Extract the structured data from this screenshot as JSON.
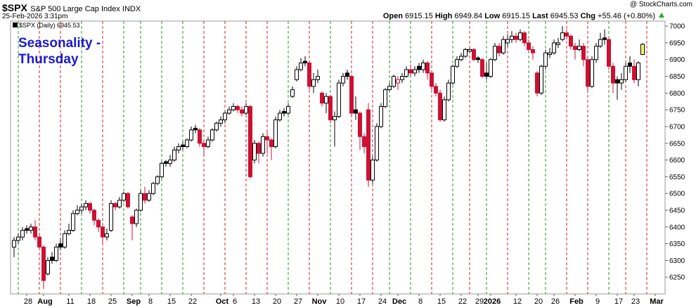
{
  "header": {
    "symbol": "$SPX",
    "name": "S&P 500 Large Cap Index INDX",
    "date": "25-Feb-2026 3:31pm",
    "stat_labels": [
      "Open",
      "High",
      "Low",
      "Last",
      "Chg"
    ],
    "change": "+55.46 (+0.80%)",
    "source": "@ StockCharts.com",
    "legend": "$SPX (Daily)"
  },
  "chart_data": {
    "type": "candlestick",
    "annotation": [
      "Seasonality -",
      "Thursday"
    ],
    "categories": [
      null,
      null,
      null,
      "28",
      null,
      null,
      null,
      "Aug",
      null,
      null,
      null,
      null,
      null,
      "11",
      null,
      null,
      null,
      null,
      "18",
      null,
      null,
      null,
      null,
      "25",
      null,
      null,
      null,
      null,
      "Sep",
      null,
      null,
      null,
      "8",
      null,
      null,
      null,
      null,
      "15",
      null,
      null,
      null,
      null,
      "22",
      null,
      null,
      null,
      null,
      null,
      null,
      "Oct",
      null,
      null,
      "6",
      null,
      null,
      null,
      null,
      "13",
      null,
      null,
      null,
      null,
      "20",
      null,
      null,
      null,
      null,
      "27",
      null,
      null,
      null,
      null,
      "Nov",
      null,
      null,
      null,
      null,
      "10",
      null,
      null,
      null,
      null,
      "17",
      null,
      null,
      null,
      null,
      "24",
      null,
      null,
      null,
      "Dec",
      null,
      null,
      null,
      null,
      "8",
      null,
      null,
      null,
      null,
      "15",
      null,
      null,
      null,
      null,
      "22",
      null,
      null,
      null,
      "29",
      null,
      null,
      "2026",
      null,
      null,
      null,
      null,
      null,
      "12",
      null,
      null,
      null,
      null,
      "20",
      null,
      null,
      null,
      "26",
      null,
      null,
      null,
      null,
      "Feb",
      null,
      null,
      null,
      null,
      "9",
      null,
      null,
      null,
      null,
      "17",
      null,
      null,
      null,
      "23",
      null,
      null,
      null,
      null,
      "Mar"
    ],
    "open": [
      6340,
      6360,
      6370,
      6395,
      6390,
      6400,
      6370,
      6340,
      6260,
      6310,
      6300,
      6350,
      6340,
      6380,
      6390,
      6440,
      6450,
      6460,
      6470,
      6450,
      6420,
      6400,
      6370,
      6390,
      6470,
      6460,
      6480,
      6500,
      6430,
      6410,
      6450,
      6500,
      6480,
      6500,
      6530,
      6550,
      6595,
      6590,
      6600,
      6630,
      6645,
      6640,
      6660,
      6695,
      6690,
      6650,
      6640,
      6660,
      6690,
      6710,
      6720,
      6740,
      6750,
      6760,
      6750,
      6740,
      6760,
      6600,
      6650,
      6620,
      6670,
      6660,
      6640,
      6720,
      6745,
      6740,
      6790,
      6840,
      6870,
      6895,
      6890,
      6820,
      6840,
      6800,
      6770,
      6790,
      6720,
      6730,
      6830,
      6860,
      6850,
      6750,
      6740,
      6670,
      6750,
      6540,
      6600,
      6700,
      6760,
      6810,
      6820,
      6830,
      6840,
      6850,
      6870,
      6860,
      6880,
      6870,
      6890,
      6860,
      6820,
      6800,
      6720,
      6780,
      6830,
      6880,
      6900,
      6910,
      6925,
      6930,
      6905,
      6900,
      6860,
      6850,
      6900,
      6940,
      6920,
      6950,
      6960,
      6970,
      6960,
      6980,
      6950,
      6930,
      6860,
      6800,
      6880,
      6915,
      6920,
      6945,
      6960,
      6980,
      6970,
      6940,
      6930,
      6940,
      6900,
      6820,
      6900,
      6940,
      6965,
      6960,
      6880,
      6840,
      6830,
      6840,
      6890,
      6880,
      6840,
      6915.15,
      null,
      null,
      null
    ],
    "high": [
      6370,
      6380,
      6400,
      6405,
      6410,
      6420,
      6380,
      6345,
      6310,
      6325,
      6350,
      6365,
      6390,
      6410,
      6450,
      6465,
      6470,
      6480,
      6475,
      6455,
      6425,
      6405,
      6395,
      6480,
      6475,
      6490,
      6505,
      6505,
      6435,
      6455,
      6510,
      6520,
      6510,
      6535,
      6555,
      6595,
      6600,
      6615,
      6640,
      6650,
      6655,
      6665,
      6700,
      6705,
      6695,
      6655,
      6670,
      6695,
      6715,
      6730,
      6745,
      6760,
      6770,
      6765,
      6760,
      6770,
      6765,
      6660,
      6655,
      6680,
      6690,
      6665,
      6730,
      6750,
      6755,
      6770,
      6820,
      6880,
      6905,
      6910,
      6895,
      6860,
      6870,
      6805,
      6800,
      6795,
      6745,
      6840,
      6860,
      6870,
      6855,
      6790,
      6745,
      6680,
      6770,
      6610,
      6710,
      6770,
      6815,
      6830,
      6855,
      6850,
      6860,
      6880,
      6885,
      6880,
      6890,
      6900,
      6895,
      6865,
      6830,
      6810,
      6790,
      6840,
      6885,
      6910,
      6920,
      6935,
      6935,
      6935,
      6910,
      6905,
      6890,
      6905,
      6950,
      6950,
      6970,
      6975,
      6985,
      6980,
      6990,
      6985,
      6960,
      6940,
      6865,
      6885,
      6930,
      6935,
      6960,
      6965,
      7000,
      6990,
      6975,
      6950,
      6960,
      6950,
      6905,
      6910,
      6950,
      6980,
      6990,
      6965,
      6890,
      6850,
      6860,
      6890,
      6910,
      6900,
      6895,
      6949.84,
      null,
      null,
      null
    ],
    "low": [
      6310,
      6350,
      6360,
      6380,
      6380,
      6360,
      6330,
      6215,
      6255,
      6290,
      6295,
      6330,
      6335,
      6375,
      6385,
      6435,
      6440,
      6450,
      6440,
      6405,
      6385,
      6345,
      6360,
      6385,
      6450,
      6455,
      6475,
      6455,
      6360,
      6400,
      6445,
      6470,
      6475,
      6495,
      6525,
      6545,
      6580,
      6580,
      6595,
      6620,
      6630,
      6635,
      6655,
      6680,
      6640,
      6610,
      6635,
      6655,
      6685,
      6700,
      6710,
      6735,
      6745,
      6740,
      6730,
      6735,
      6545,
      6590,
      6590,
      6610,
      6620,
      6600,
      6635,
      6715,
      6730,
      6735,
      6785,
      6835,
      6865,
      6880,
      6810,
      6800,
      6830,
      6760,
      6740,
      6710,
      6640,
      6725,
      6820,
      6840,
      6730,
      6720,
      6630,
      6620,
      6520,
      6530,
      6595,
      6695,
      6755,
      6805,
      6815,
      6810,
      6830,
      6845,
      6850,
      6850,
      6860,
      6860,
      6840,
      6810,
      6790,
      6715,
      6715,
      6775,
      6825,
      6875,
      6895,
      6905,
      6920,
      6895,
      6890,
      6845,
      6840,
      6845,
      6895,
      6910,
      6915,
      6940,
      6950,
      6950,
      6955,
      6940,
      6920,
      6900,
      6790,
      6795,
      6870,
      6905,
      6915,
      6935,
      6955,
      6960,
      6930,
      6900,
      6925,
      6880,
      6800,
      6815,
      6890,
      6935,
      6945,
      6870,
      6800,
      6780,
      6810,
      6835,
      6860,
      6830,
      6820,
      6915.15,
      null,
      null,
      null
    ],
    "close": [
      6360,
      6370,
      6390,
      6390,
      6400,
      6370,
      6340,
      6240,
      6300,
      6300,
      6340,
      6340,
      6380,
      6390,
      6440,
      6450,
      6460,
      6470,
      6450,
      6420,
      6400,
      6370,
      6380,
      6470,
      6460,
      6480,
      6500,
      6460,
      6410,
      6450,
      6500,
      6480,
      6500,
      6530,
      6550,
      6590,
      6590,
      6600,
      6630,
      6640,
      6640,
      6660,
      6690,
      6690,
      6650,
      6640,
      6660,
      6690,
      6710,
      6720,
      6740,
      6750,
      6760,
      6750,
      6740,
      6760,
      6550,
      6650,
      6620,
      6670,
      6660,
      6640,
      6720,
      6740,
      6740,
      6760,
      6810,
      6870,
      6890,
      6890,
      6820,
      6840,
      6850,
      6770,
      6790,
      6720,
      6730,
      6830,
      6850,
      6850,
      6740,
      6740,
      6670,
      6640,
      6540,
      6600,
      6700,
      6760,
      6810,
      6820,
      6850,
      6840,
      6850,
      6870,
      6860,
      6870,
      6870,
      6890,
      6860,
      6820,
      6800,
      6720,
      6780,
      6830,
      6880,
      6900,
      6910,
      6930,
      6930,
      6900,
      6900,
      6850,
      6850,
      6900,
      6940,
      6920,
      6960,
      6960,
      6970,
      6960,
      6980,
      6950,
      6930,
      6920,
      6800,
      6880,
      6920,
      6920,
      6950,
      6950,
      6980,
      6970,
      6940,
      6930,
      6940,
      6900,
      6820,
      6900,
      6940,
      6960,
      6960,
      6880,
      6830,
      6830,
      6840,
      6880,
      6880,
      6840,
      6890.07,
      6945.53,
      null,
      null,
      null
    ],
    "thursday_marker_colors": [
      null,
      "#229922",
      null,
      null,
      null,
      null,
      "#cc2222",
      null,
      null,
      null,
      null,
      "#cc2222",
      null,
      null,
      null,
      null,
      "#229922",
      null,
      null,
      null,
      null,
      "#cc2222",
      null,
      null,
      null,
      null,
      "#229922",
      null,
      null,
      null,
      "#229922",
      null,
      null,
      null,
      null,
      "#229922",
      null,
      null,
      null,
      null,
      "#229922",
      null,
      null,
      null,
      null,
      "#cc2222",
      null,
      null,
      null,
      null,
      "#cc2222",
      null,
      null,
      null,
      null,
      "#cc2222",
      null,
      null,
      null,
      null,
      "#cc2222",
      null,
      null,
      null,
      null,
      "#229922",
      null,
      null,
      null,
      null,
      "#cc2222",
      null,
      null,
      null,
      null,
      "#229922",
      null,
      null,
      null,
      null,
      "#cc2222",
      null,
      null,
      null,
      null,
      "#cc2222",
      null,
      null,
      null,
      "#229922",
      null,
      null,
      null,
      null,
      "#229922",
      null,
      null,
      null,
      null,
      "#cc2222",
      null,
      null,
      null,
      null,
      "#229922",
      null,
      null,
      null,
      "#cc2222",
      null,
      null,
      null,
      "#229922",
      null,
      null,
      null,
      null,
      "#cc2222",
      null,
      null,
      null,
      null,
      "#229922",
      null,
      null,
      null,
      "#229922",
      null,
      null,
      null,
      null,
      "#cc2222",
      null,
      null,
      null,
      null,
      "#cc2222",
      null,
      null,
      null,
      null,
      "#229922",
      null,
      null,
      null,
      "#cc2222",
      null,
      null,
      null,
      null,
      "#cc2222",
      null,
      null
    ],
    "up_color": "#000000",
    "down_color": "#cc1133",
    "last_color": "#ffff66",
    "ylim": [
      6200,
      7015
    ],
    "yticks": [
      6250,
      6300,
      6350,
      6400,
      6450,
      6500,
      6550,
      6600,
      6650,
      6700,
      6750,
      6800,
      6850,
      6900,
      6950,
      7000
    ]
  }
}
